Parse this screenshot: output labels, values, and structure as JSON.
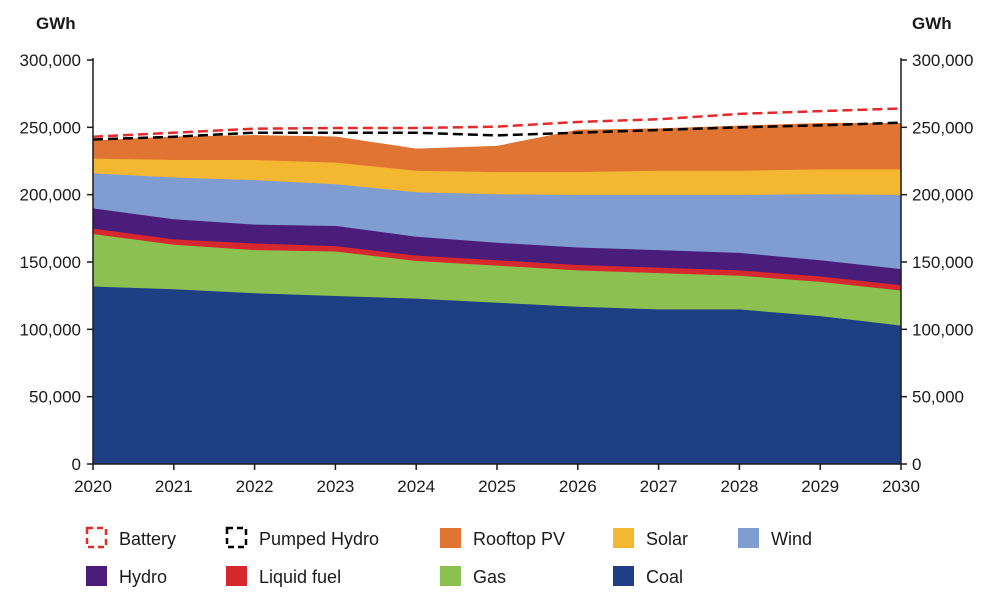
{
  "chart_data": {
    "type": "area",
    "subtype": "stacked",
    "unit_left": "GWh",
    "unit_right": "GWh",
    "x": [
      "2020",
      "2021",
      "2022",
      "2023",
      "2024",
      "2025",
      "2026",
      "2027",
      "2028",
      "2029",
      "2030"
    ],
    "y_ticks": [
      "0",
      "50,000",
      "100,000",
      "150,000",
      "200,000",
      "250,000",
      "300,000"
    ],
    "ylim": [
      0,
      300000
    ],
    "grid": false,
    "legend_position": "bottom",
    "series": [
      {
        "name": "Coal",
        "color": "#1f3f84",
        "values": [
          132000,
          130000,
          127000,
          125000,
          123000,
          120000,
          117000,
          115000,
          115000,
          110000,
          103000
        ]
      },
      {
        "name": "Gas",
        "color": "#8cc152",
        "values": [
          39000,
          33000,
          32000,
          33000,
          28000,
          27500,
          27000,
          27000,
          25000,
          25500,
          26000
        ]
      },
      {
        "name": "Liquid fuel",
        "color": "#d7282f",
        "values": [
          4000,
          4000,
          5000,
          4000,
          4000,
          4000,
          4000,
          4000,
          4000,
          4000,
          4000
        ]
      },
      {
        "name": "Hydro",
        "color": "#4a1d7a",
        "values": [
          15000,
          15000,
          14000,
          15000,
          14000,
          13000,
          13000,
          13000,
          13000,
          12000,
          12000
        ]
      },
      {
        "name": "Wind",
        "color": "#7f9dd1",
        "values": [
          26000,
          31000,
          33000,
          31000,
          33000,
          36000,
          39000,
          41000,
          43000,
          49000,
          55000
        ]
      },
      {
        "name": "Solar",
        "color": "#f4b731",
        "values": [
          11000,
          13000,
          15000,
          16000,
          16000,
          16500,
          17000,
          18000,
          18000,
          18500,
          19000
        ]
      },
      {
        "name": "Rooftop PV",
        "color": "#e07432",
        "values": [
          13000,
          17000,
          18000,
          19000,
          16000,
          19000,
          31000,
          31000,
          33000,
          34000,
          34000
        ]
      }
    ],
    "line_series": [
      {
        "name": "Pumped Hydro",
        "color": "#000000",
        "style": "dashed",
        "values": [
          241000,
          243000,
          246000,
          246000,
          246000,
          244000,
          246000,
          248000,
          250000,
          251500,
          253500
        ]
      },
      {
        "name": "Battery",
        "color": "#e32b2b",
        "style": "dashed",
        "values": [
          243000,
          246000,
          249000,
          249500,
          249500,
          250500,
          254000,
          256000,
          260000,
          262000,
          264000
        ]
      }
    ],
    "legend": [
      {
        "name": "Battery",
        "color": "#e32b2b",
        "kind": "dashed-box"
      },
      {
        "name": "Pumped Hydro",
        "color": "#000000",
        "kind": "dashed-box"
      },
      {
        "name": "Rooftop PV",
        "color": "#e07432",
        "kind": "fill"
      },
      {
        "name": "Solar",
        "color": "#f4b731",
        "kind": "fill"
      },
      {
        "name": "Wind",
        "color": "#7f9dd1",
        "kind": "fill"
      },
      {
        "name": "Hydro",
        "color": "#4a1d7a",
        "kind": "fill"
      },
      {
        "name": "Liquid fuel",
        "color": "#d7282f",
        "kind": "fill"
      },
      {
        "name": "Gas",
        "color": "#8cc152",
        "kind": "fill"
      },
      {
        "name": "Coal",
        "color": "#1f3f84",
        "kind": "fill"
      }
    ]
  }
}
